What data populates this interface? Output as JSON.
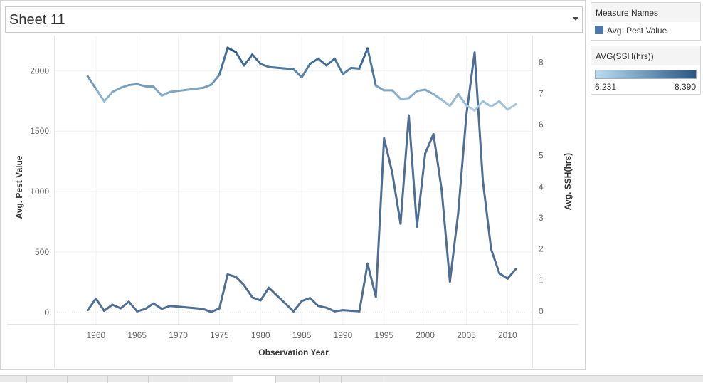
{
  "sheet": {
    "title": "Sheet 11"
  },
  "legend_measures": {
    "title": "Measure Names",
    "items": [
      {
        "label": "Avg. Pest Value",
        "color": "#4e79a7"
      }
    ]
  },
  "legend_color": {
    "title": "AVG(SSH(hrs))",
    "min_label": "6.231",
    "max_label": "8.390",
    "color_min": "#b9ddf1",
    "color_max": "#2a5783"
  },
  "chart_data": {
    "type": "line",
    "xlabel": "Observation Year",
    "ylabel": "Avg. Pest Value",
    "y2label": "Avg. SSH(hrs)",
    "x_ticks": [
      "1960",
      "1965",
      "1970",
      "1975",
      "1980",
      "1985",
      "1990",
      "1995",
      "2000",
      "2005",
      "2010"
    ],
    "y_ticks": [
      "0",
      "500",
      "1000",
      "1500",
      "2000"
    ],
    "y2_ticks": [
      "0",
      "1",
      "2",
      "3",
      "4",
      "5",
      "6",
      "7",
      "8"
    ],
    "xlim": [
      1955,
      2013
    ],
    "ylim": [
      -100,
      2290
    ],
    "y2lim": [
      -0.4352,
      8.8611
    ],
    "grid": true,
    "series": [
      {
        "name": "Avg. Pest Value",
        "axis": "left",
        "color": "#4e6e95",
        "x": [
          1959,
          1960,
          1961,
          1962,
          1963,
          1964,
          1965,
          1966,
          1967,
          1968,
          1969,
          1973,
          1974,
          1975,
          1976,
          1977,
          1978,
          1979,
          1980,
          1981,
          1984,
          1985,
          1986,
          1987,
          1988,
          1989,
          1990,
          1991,
          1992,
          1993,
          1994,
          1995,
          1996,
          1997,
          1998,
          1999,
          2000,
          2001,
          2002,
          2003,
          2004,
          2005,
          2006,
          2007,
          2008,
          2009,
          2010,
          2011
        ],
        "values": [
          20,
          115,
          15,
          65,
          35,
          90,
          10,
          30,
          75,
          30,
          55,
          30,
          5,
          35,
          315,
          295,
          225,
          125,
          100,
          205,
          10,
          95,
          120,
          55,
          40,
          10,
          20,
          15,
          10,
          405,
          130,
          1440,
          1155,
          735,
          1630,
          710,
          1315,
          1475,
          1015,
          255,
          820,
          1630,
          2150,
          1090,
          525,
          325,
          280,
          360
        ]
      },
      {
        "name": "Avg. SSH(hrs)",
        "axis": "right",
        "x": [
          1959,
          1960,
          1961,
          1962,
          1963,
          1964,
          1965,
          1966,
          1967,
          1968,
          1969,
          1973,
          1974,
          1975,
          1976,
          1977,
          1978,
          1979,
          1980,
          1981,
          1984,
          1985,
          1986,
          1987,
          1988,
          1989,
          1990,
          1991,
          1992,
          1993,
          1994,
          1995,
          1996,
          1997,
          1998,
          1999,
          2000,
          2001,
          2002,
          2003,
          2004,
          2005,
          2006,
          2007,
          2008,
          2009,
          2010,
          2011
        ],
        "values": [
          7.55,
          7.15,
          6.75,
          7.05,
          7.18,
          7.27,
          7.3,
          7.23,
          7.22,
          6.93,
          7.05,
          7.18,
          7.28,
          7.6,
          8.47,
          8.33,
          7.9,
          8.25,
          7.95,
          7.85,
          7.78,
          7.52,
          7.95,
          8.12,
          7.9,
          8.12,
          7.62,
          7.82,
          7.8,
          8.45,
          7.25,
          7.1,
          7.1,
          6.83,
          6.85,
          7.08,
          7.12,
          6.98,
          6.8,
          6.6,
          6.98,
          6.62,
          6.45,
          6.75,
          6.58,
          6.75,
          6.48,
          6.65
        ]
      }
    ]
  },
  "tabs": [
    "",
    "",
    "",
    "",
    "",
    "",
    "",
    "",
    "",
    ""
  ]
}
